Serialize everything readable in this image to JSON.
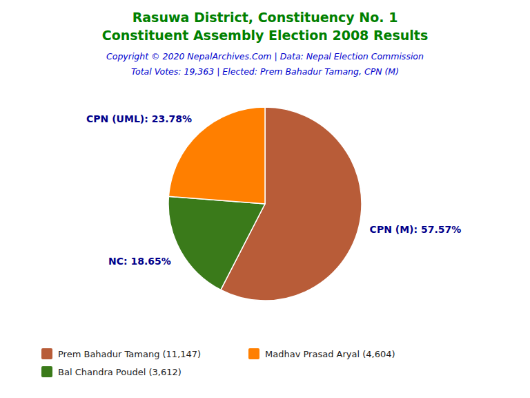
{
  "chart_data": {
    "type": "pie",
    "title": "Rasuwa District, Constituency No. 1",
    "subtitle": "Constituent Assembly Election 2008 Results",
    "annotations": [
      "Copyright © 2020 NepalArchives.Com | Data: Nepal Election Commission",
      "Total Votes: 19,363 | Elected: Prem Bahadur Tamang, CPN (M)"
    ],
    "categories": [
      "CPN (M)",
      "NC",
      "CPN (UML)"
    ],
    "values": [
      57.57,
      18.65,
      23.78
    ],
    "value_labels": [
      "CPN (M): 57.57%",
      "NC: 18.65%",
      "CPN (UML): 23.78%"
    ],
    "colors": [
      "#B85C38",
      "#3A7A1A",
      "#FF7F00"
    ],
    "data_labels": true,
    "legend": "lower left",
    "legend_entries": [
      {
        "name": "Prem Bahadur Tamang (11,147)",
        "color": "#B85C38"
      },
      {
        "name": "Madhav Prasad Aryal (4,604)",
        "color": "#FF7F00"
      },
      {
        "name": "Bal Chandra Poudel (3,612)",
        "color": "#3A7A1A"
      }
    ]
  }
}
